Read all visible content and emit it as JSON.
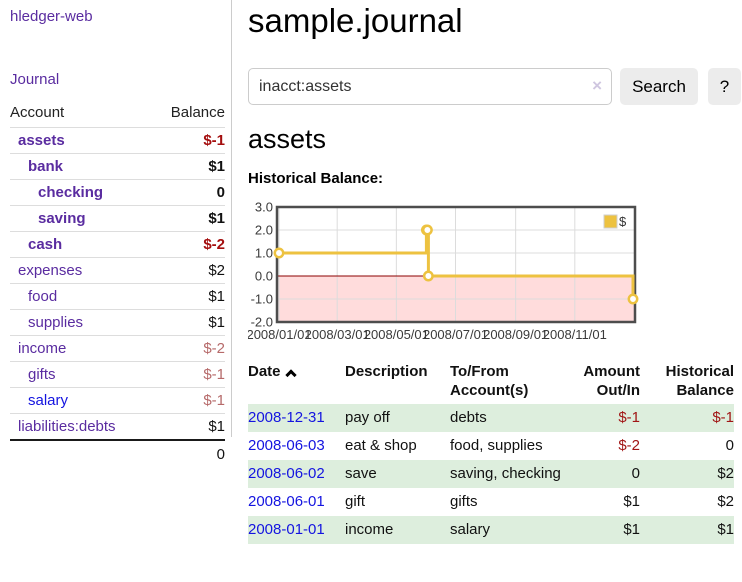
{
  "app": {
    "brand": "hledger-web"
  },
  "sidebar": {
    "journal_link": "Journal",
    "accounts": {
      "headers": {
        "account": "Account",
        "balance": "Balance"
      },
      "rows": [
        {
          "name": "assets",
          "level": 0,
          "bold": true,
          "link_color": "purple",
          "balance": "$-1",
          "balance_class": "neg-strong"
        },
        {
          "name": "bank",
          "level": 1,
          "bold": true,
          "link_color": "purple",
          "balance": "$1",
          "balance_class": ""
        },
        {
          "name": "checking",
          "level": 2,
          "bold": true,
          "link_color": "purple",
          "balance": "0",
          "balance_class": ""
        },
        {
          "name": "saving",
          "level": 2,
          "bold": true,
          "link_color": "purple",
          "balance": "$1",
          "balance_class": ""
        },
        {
          "name": "cash",
          "level": 1,
          "bold": true,
          "link_color": "purple",
          "balance": "$-2",
          "balance_class": "neg-strong"
        },
        {
          "name": "expenses",
          "level": 0,
          "bold": false,
          "link_color": "purple",
          "balance": "$2",
          "balance_class": ""
        },
        {
          "name": "food",
          "level": 1,
          "bold": false,
          "link_color": "purple",
          "balance": "$1",
          "balance_class": ""
        },
        {
          "name": "supplies",
          "level": 1,
          "bold": false,
          "link_color": "purple",
          "balance": "$1",
          "balance_class": ""
        },
        {
          "name": "income",
          "level": 0,
          "bold": false,
          "link_color": "purple",
          "balance": "$-2",
          "balance_class": "neg-muted"
        },
        {
          "name": "gifts",
          "level": 1,
          "bold": false,
          "link_color": "purple",
          "balance": "$-1",
          "balance_class": "neg-muted"
        },
        {
          "name": "salary",
          "level": 1,
          "bold": false,
          "link_color": "blue",
          "balance": "$-1",
          "balance_class": "neg-muted"
        },
        {
          "name": "liabilities:debts",
          "level": 0,
          "bold": false,
          "link_color": "purple",
          "balance": "$1",
          "balance_class": ""
        }
      ],
      "total": "0"
    }
  },
  "main": {
    "title": "sample.journal",
    "search": {
      "value": "inacct:assets",
      "clear_icon": "×",
      "button_label": "Search",
      "help_label": "?"
    },
    "account_heading": "assets",
    "chart_title": "Historical Balance:"
  },
  "chart_data": {
    "type": "line",
    "title": "Historical Balance:",
    "series": [
      {
        "name": "$",
        "color": "#edc240",
        "steps": true,
        "points": [
          {
            "date": "2008-01-01",
            "value": 1
          },
          {
            "date": "2008-06-01",
            "value": 2
          },
          {
            "date": "2008-06-02",
            "value": 2
          },
          {
            "date": "2008-06-03",
            "value": 0
          },
          {
            "date": "2008-12-31",
            "value": -1
          }
        ]
      }
    ],
    "x_ticks": [
      "2008/01/01",
      "2008/03/01",
      "2008/05/01",
      "2008/07/01",
      "2008/09/01",
      "2008/11/01"
    ],
    "y_ticks": [
      3.0,
      2.0,
      1.0,
      0.0,
      -1.0,
      -2.0
    ],
    "ylim": [
      -2,
      3
    ],
    "x_range": [
      "2008-01-01",
      "2008-12-31"
    ],
    "grid": true,
    "legend_position": "top-right",
    "colors": {
      "negative_region": "#ffdcdc",
      "zero_line": "#8b0000",
      "grid_line": "#dcdcdc",
      "border": "#4d4d4d",
      "tick_text": "#3a3a3a"
    }
  },
  "register": {
    "headers": [
      {
        "lines": [
          "Date"
        ],
        "sort": "asc",
        "align": "left"
      },
      {
        "lines": [
          "Description"
        ],
        "align": "left"
      },
      {
        "lines": [
          "To/From",
          "Account(s)"
        ],
        "align": "left"
      },
      {
        "lines": [
          "Amount",
          "Out/In"
        ],
        "align": "right"
      },
      {
        "lines": [
          "Historical",
          "Balance"
        ],
        "align": "right"
      }
    ],
    "rows": [
      {
        "date": "2008-12-31",
        "description": "pay off",
        "accounts": "debts",
        "amount": "$-1",
        "amount_negative": true,
        "balance": "$-1",
        "balance_negative": true
      },
      {
        "date": "2008-06-03",
        "description": "eat & shop",
        "accounts": "food, supplies",
        "amount": "$-2",
        "amount_negative": true,
        "balance": "0",
        "balance_negative": false
      },
      {
        "date": "2008-06-02",
        "description": "save",
        "accounts": "saving, checking",
        "amount": "0",
        "amount_negative": false,
        "balance": "$2",
        "balance_negative": false
      },
      {
        "date": "2008-06-01",
        "description": "gift",
        "accounts": "gifts",
        "amount": "$1",
        "amount_negative": false,
        "balance": "$2",
        "balance_negative": false
      },
      {
        "date": "2008-01-01",
        "description": "income",
        "accounts": "salary",
        "amount": "$1",
        "amount_negative": false,
        "balance": "$1",
        "balance_negative": false
      }
    ]
  }
}
